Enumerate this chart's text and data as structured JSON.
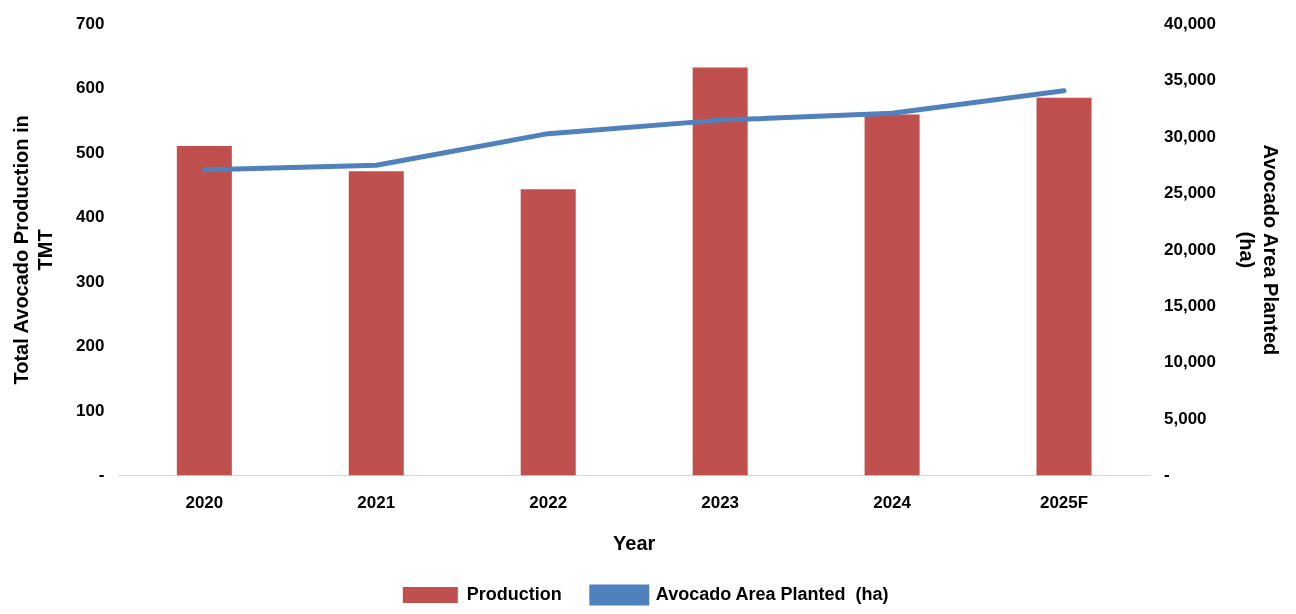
{
  "chart_data": {
    "type": "bar",
    "xlabel": "Year",
    "ylabel": "Total Avocado Production in\nTMT",
    "y2label": "Avocado Area Planted\n(ha)",
    "categories": [
      "2020",
      "2021",
      "2022",
      "2023",
      "2024",
      "2025F"
    ],
    "series": [
      {
        "name": "Production",
        "color": "#c0504d",
        "values": [
          511,
          472,
          444,
          633,
          560,
          586
        ]
      },
      {
        "name": "Avocado Area Planted  (ha)",
        "type": "line",
        "axis": "y2",
        "color": "#4f81bd",
        "marker": "none",
        "values": [
          27100,
          27500,
          30300,
          31500,
          32100,
          34100
        ]
      }
    ],
    "ylim": [
      0,
      700
    ],
    "yticks": [
      {
        "value": 0,
        "label": "-"
      },
      100,
      200,
      300,
      400,
      500,
      600,
      700
    ],
    "y2lim": [
      0,
      40000
    ],
    "y2ticks": [
      {
        "value": 0,
        "label": "-"
      },
      {
        "value": 5000,
        "label": "5,000"
      },
      {
        "value": 10000,
        "label": "10,000"
      },
      {
        "value": 15000,
        "label": "15,000"
      },
      {
        "value": 20000,
        "label": "20,000"
      },
      {
        "value": 25000,
        "label": "25,000"
      },
      {
        "value": 30000,
        "label": "30,000"
      },
      {
        "value": 35000,
        "label": "35,000"
      },
      {
        "value": 40000,
        "label": "40,000"
      }
    ],
    "grid": false,
    "legend": "bottom"
  }
}
